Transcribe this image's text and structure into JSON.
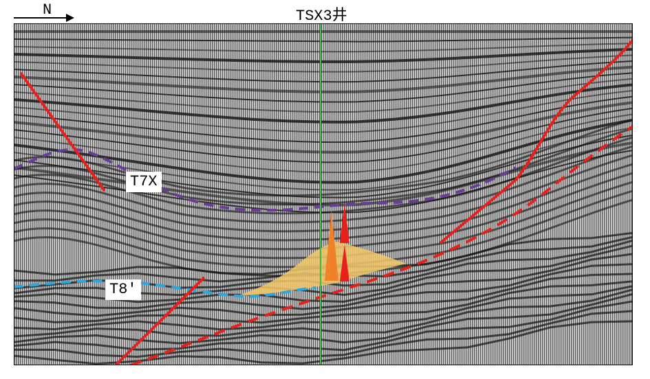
{
  "north_label": "N",
  "well_label": "TSX3井",
  "horizons": [
    {
      "id": "T7X",
      "label": "T7X",
      "color": "#6a3d9a"
    },
    {
      "id": "T8",
      "label": "T8′",
      "color": "#29a8e0"
    }
  ],
  "colors": {
    "fault": "#e8201c",
    "well_line": "#3fbf4a",
    "fan_fill": "#f2c868",
    "spike_orange": "#f0822a",
    "spike_red": "#e8201c"
  }
}
